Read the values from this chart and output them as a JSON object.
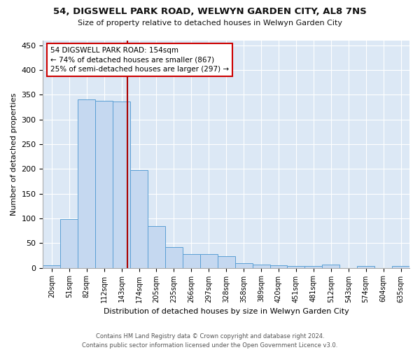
{
  "title": "54, DIGSWELL PARK ROAD, WELWYN GARDEN CITY, AL8 7NS",
  "subtitle": "Size of property relative to detached houses in Welwyn Garden City",
  "xlabel": "Distribution of detached houses by size in Welwyn Garden City",
  "ylabel": "Number of detached properties",
  "bar_color": "#c5d8f0",
  "bar_edge_color": "#5a9fd4",
  "background_color": "#dce8f5",
  "grid_color": "#ffffff",
  "figure_color": "#ffffff",
  "categories": [
    "20sqm",
    "51sqm",
    "82sqm",
    "112sqm",
    "143sqm",
    "174sqm",
    "205sqm",
    "235sqm",
    "266sqm",
    "297sqm",
    "328sqm",
    "358sqm",
    "389sqm",
    "420sqm",
    "451sqm",
    "481sqm",
    "512sqm",
    "543sqm",
    "574sqm",
    "604sqm",
    "635sqm"
  ],
  "values": [
    5,
    98,
    340,
    338,
    336,
    197,
    84,
    42,
    27,
    27,
    24,
    10,
    6,
    5,
    4,
    4,
    6,
    0,
    3,
    0,
    3
  ],
  "ylim": [
    0,
    460
  ],
  "yticks": [
    0,
    50,
    100,
    150,
    200,
    250,
    300,
    350,
    400,
    450
  ],
  "pct_smaller": 74,
  "n_smaller": 867,
  "pct_larger_semi": 25,
  "n_larger_semi": 297,
  "annotation_box_color": "#ffffff",
  "annotation_box_edge_color": "#cc0000",
  "vline_color": "#aa0000",
  "footer_line1": "Contains HM Land Registry data © Crown copyright and database right 2024.",
  "footer_line2": "Contains public sector information licensed under the Open Government Licence v3.0."
}
